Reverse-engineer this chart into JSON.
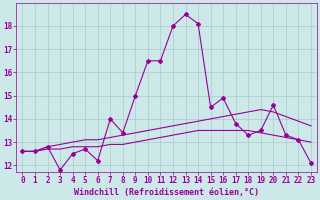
{
  "xlabel": "Windchill (Refroidissement éolien,°C)",
  "ylabel": "",
  "bg_color": "#cce8e8",
  "grid_color": "#aacccc",
  "line_color": "#990099",
  "marker": "D",
  "markersize": 2.0,
  "linewidth": 0.8,
  "xlim": [
    -0.5,
    23.5
  ],
  "ylim": [
    11.7,
    19.0
  ],
  "yticks": [
    12,
    13,
    14,
    15,
    16,
    17,
    18
  ],
  "xticks": [
    0,
    1,
    2,
    3,
    4,
    5,
    6,
    7,
    8,
    9,
    10,
    11,
    12,
    13,
    14,
    15,
    16,
    17,
    18,
    19,
    20,
    21,
    22,
    23
  ],
  "series1_x": [
    0,
    1,
    2,
    3,
    4,
    5,
    6,
    7,
    8,
    9,
    10,
    11,
    12,
    13,
    14,
    15,
    16,
    17,
    18,
    19,
    20,
    21,
    22,
    23
  ],
  "series1_y": [
    12.6,
    12.6,
    12.8,
    11.8,
    12.5,
    12.7,
    12.2,
    14.0,
    13.4,
    15.0,
    16.5,
    16.5,
    18.0,
    18.5,
    18.1,
    14.5,
    14.9,
    13.8,
    13.3,
    13.5,
    14.6,
    13.3,
    13.1,
    12.1
  ],
  "series2_x": [
    0,
    1,
    2,
    3,
    4,
    5,
    6,
    7,
    8,
    9,
    10,
    11,
    12,
    13,
    14,
    15,
    16,
    17,
    18,
    19,
    20,
    21,
    22,
    23
  ],
  "series2_y": [
    12.6,
    12.6,
    12.8,
    12.9,
    13.0,
    13.1,
    13.1,
    13.2,
    13.3,
    13.4,
    13.5,
    13.6,
    13.7,
    13.8,
    13.9,
    14.0,
    14.1,
    14.2,
    14.3,
    14.4,
    14.3,
    14.1,
    13.9,
    13.7
  ],
  "series3_x": [
    0,
    1,
    2,
    3,
    4,
    5,
    6,
    7,
    8,
    9,
    10,
    11,
    12,
    13,
    14,
    15,
    16,
    17,
    18,
    19,
    20,
    21,
    22,
    23
  ],
  "series3_y": [
    12.6,
    12.6,
    12.7,
    12.7,
    12.8,
    12.8,
    12.8,
    12.9,
    12.9,
    13.0,
    13.1,
    13.2,
    13.3,
    13.4,
    13.5,
    13.5,
    13.5,
    13.5,
    13.5,
    13.4,
    13.3,
    13.2,
    13.1,
    13.0
  ],
  "tick_fontsize": 5.5,
  "xlabel_fontsize": 6.0
}
